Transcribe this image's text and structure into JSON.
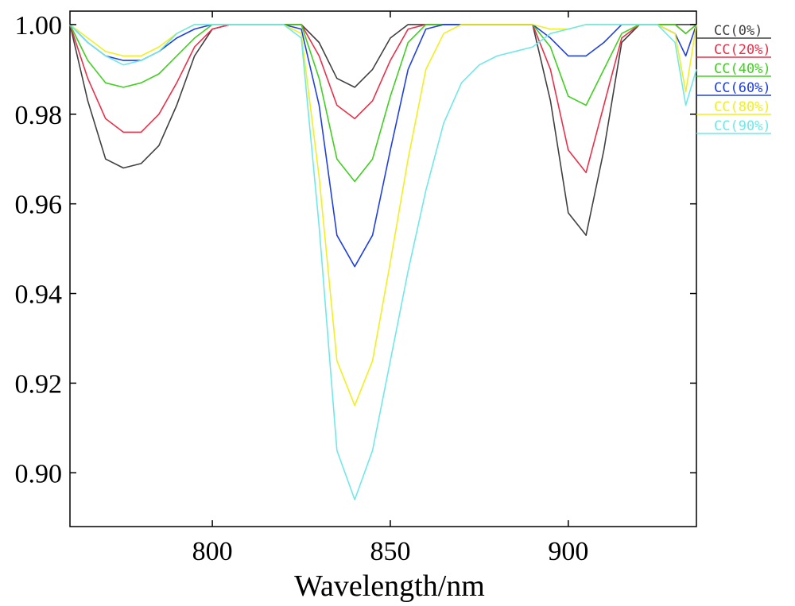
{
  "chart_data": {
    "type": "line",
    "title": "",
    "xlabel": "Wavelength/nm",
    "ylabel": "",
    "xlim": [
      760,
      936
    ],
    "ylim": [
      0.888,
      1.003
    ],
    "x_ticks": [
      800,
      850,
      900
    ],
    "y_ticks": [
      0.9,
      0.92,
      0.94,
      0.96,
      0.98,
      1.0
    ],
    "x_tick_labels": [
      "800",
      "850",
      "900"
    ],
    "y_tick_labels": [
      "0.90",
      "0.92",
      "0.94",
      "0.96",
      "0.98",
      "1.00"
    ],
    "grid": false,
    "legend_position": "right",
    "x": [
      760,
      765,
      770,
      775,
      780,
      785,
      790,
      795,
      800,
      805,
      810,
      815,
      820,
      825,
      830,
      835,
      840,
      845,
      850,
      855,
      860,
      865,
      870,
      875,
      880,
      885,
      890,
      895,
      900,
      905,
      910,
      915,
      920,
      925,
      930,
      933,
      936
    ],
    "series": [
      {
        "name": "CC(0%)",
        "color": "#404040",
        "values": [
          1.0,
          0.983,
          0.97,
          0.968,
          0.969,
          0.973,
          0.982,
          0.993,
          0.999,
          1.0,
          1.0,
          1.0,
          1.0,
          1.0,
          0.996,
          0.988,
          0.986,
          0.99,
          0.997,
          1.0,
          1.0,
          1.0,
          1.0,
          1.0,
          1.0,
          1.0,
          1.0,
          0.983,
          0.958,
          0.953,
          0.972,
          0.996,
          1.0,
          1.0,
          1.0,
          1.0,
          1.0
        ]
      },
      {
        "name": "CC(20%)",
        "color": "#e8304a",
        "values": [
          1.0,
          0.988,
          0.979,
          0.976,
          0.976,
          0.98,
          0.987,
          0.995,
          0.999,
          1.0,
          1.0,
          1.0,
          1.0,
          1.0,
          0.993,
          0.982,
          0.979,
          0.983,
          0.992,
          0.999,
          1.0,
          1.0,
          1.0,
          1.0,
          1.0,
          1.0,
          1.0,
          0.99,
          0.972,
          0.967,
          0.982,
          0.997,
          1.0,
          1.0,
          1.0,
          0.998,
          1.0
        ]
      },
      {
        "name": "CC(40%)",
        "color": "#40d020",
        "values": [
          1.0,
          0.992,
          0.987,
          0.986,
          0.987,
          0.989,
          0.993,
          0.997,
          1.0,
          1.0,
          1.0,
          1.0,
          1.0,
          1.0,
          0.988,
          0.97,
          0.965,
          0.97,
          0.984,
          0.996,
          1.0,
          1.0,
          1.0,
          1.0,
          1.0,
          1.0,
          1.0,
          0.995,
          0.984,
          0.982,
          0.99,
          0.998,
          1.0,
          1.0,
          1.0,
          0.998,
          1.0
        ]
      },
      {
        "name": "CC(60%)",
        "color": "#2040e0",
        "values": [
          1.0,
          0.996,
          0.993,
          0.992,
          0.992,
          0.994,
          0.997,
          0.999,
          1.0,
          1.0,
          1.0,
          1.0,
          1.0,
          0.999,
          0.982,
          0.953,
          0.946,
          0.953,
          0.972,
          0.99,
          0.999,
          1.0,
          1.0,
          1.0,
          1.0,
          1.0,
          1.0,
          0.997,
          0.993,
          0.993,
          0.996,
          1.0,
          1.0,
          1.0,
          0.998,
          0.993,
          1.0
        ]
      },
      {
        "name": "CC(80%)",
        "color": "#f0f020",
        "values": [
          1.0,
          0.997,
          0.994,
          0.993,
          0.993,
          0.995,
          0.998,
          1.0,
          1.0,
          1.0,
          1.0,
          1.0,
          1.0,
          0.998,
          0.966,
          0.925,
          0.915,
          0.925,
          0.947,
          0.97,
          0.99,
          0.998,
          1.0,
          1.0,
          1.0,
          1.0,
          1.0,
          0.999,
          0.999,
          1.0,
          1.0,
          1.0,
          1.0,
          1.0,
          0.998,
          0.985,
          1.0
        ]
      },
      {
        "name": "CC(90%)",
        "color": "#70e8e8",
        "values": [
          1.0,
          0.996,
          0.993,
          0.991,
          0.992,
          0.994,
          0.998,
          1.0,
          1.0,
          1.0,
          1.0,
          1.0,
          1.0,
          0.997,
          0.955,
          0.905,
          0.894,
          0.905,
          0.925,
          0.945,
          0.963,
          0.978,
          0.987,
          0.991,
          0.993,
          0.994,
          0.995,
          0.998,
          0.999,
          1.0,
          1.0,
          1.0,
          1.0,
          1.0,
          0.996,
          0.982,
          0.99
        ]
      }
    ]
  }
}
